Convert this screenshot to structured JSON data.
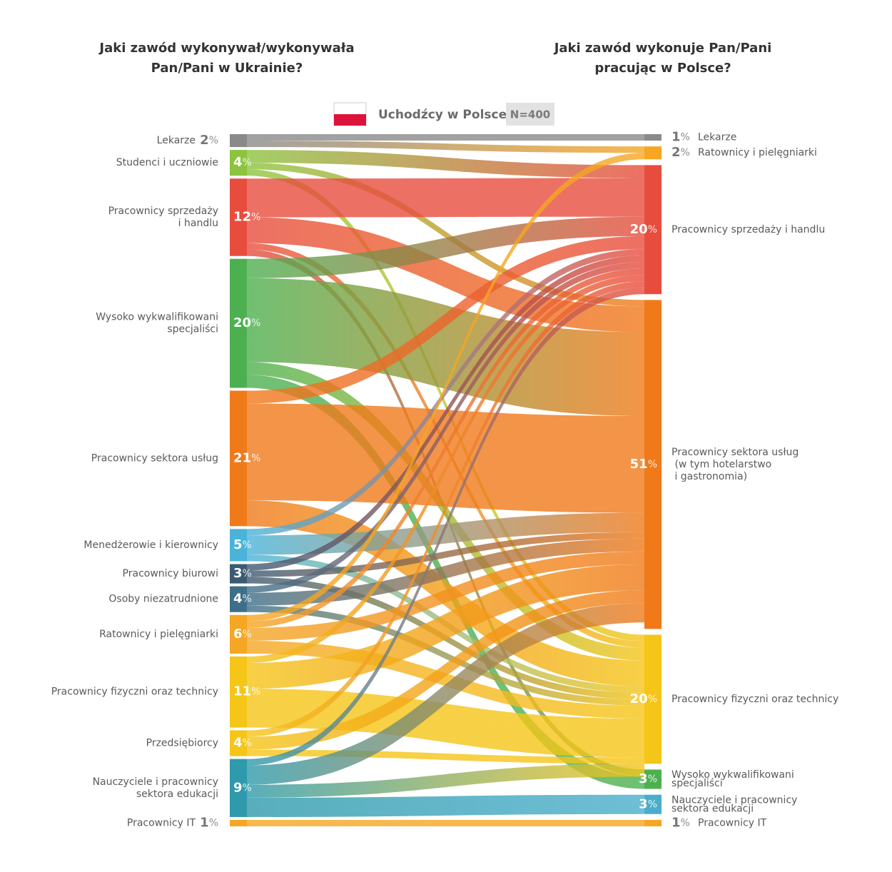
{
  "chart_data": {
    "type": "sankey",
    "left_title": [
      "Jaki zawód wykonywał/wykonywała",
      "Pan/Pani w Ukrainie?"
    ],
    "right_title": [
      "Jaki zawód wykonuje Pan/Pani",
      "pracując w Polsce?"
    ],
    "legend_label": "Uchodźcy w Polsce",
    "sample": "N=400",
    "unit": "%",
    "sources": [
      {
        "name": [
          "Lekarze"
        ],
        "value": 2,
        "color": "#8a8a8a"
      },
      {
        "name": [
          "Studenci i uczniowie"
        ],
        "value": 4,
        "color": "#8cc43f"
      },
      {
        "name": [
          "Pracownicy sprzedaży",
          "i handlu"
        ],
        "value": 12,
        "color": "#e84c3d"
      },
      {
        "name": [
          "Wysoko wykwalifikowani",
          "specjaliści"
        ],
        "value": 20,
        "color": "#4db050"
      },
      {
        "name": [
          "Pracownicy sektora usług"
        ],
        "value": 21,
        "color": "#f07a1a"
      },
      {
        "name": [
          "Menedżerowie i kierownicy"
        ],
        "value": 5,
        "color": "#4ab3d9"
      },
      {
        "name": [
          "Pracownicy biurowi"
        ],
        "value": 3,
        "color": "#3d5a73"
      },
      {
        "name": [
          "Osoby niezatrudnione"
        ],
        "value": 4,
        "color": "#3d6f8a"
      },
      {
        "name": [
          "Ratownicy i pielęgniarki"
        ],
        "value": 6,
        "color": "#f5a623"
      },
      {
        "name": [
          "Pracownicy fizyczni oraz technicy"
        ],
        "value": 11,
        "color": "#f5c518"
      },
      {
        "name": [
          "Przedsiębiorcy"
        ],
        "value": 4,
        "color": "#f5c518"
      },
      {
        "name": [
          "Nauczyciele i pracownicy",
          "sektora edukacji"
        ],
        "value": 9,
        "color": "#2e9aab"
      },
      {
        "name": [
          "Pracownicy IT"
        ],
        "value": 1,
        "color": "#f5a623"
      }
    ],
    "targets": [
      {
        "name": [
          "Lekarze"
        ],
        "value": 1,
        "color": "#8a8a8a"
      },
      {
        "name": [
          "Ratownicy i pielęgniarki"
        ],
        "value": 2,
        "color": "#f5a623"
      },
      {
        "name": [
          "Pracownicy sprzedaży i handlu"
        ],
        "value": 20,
        "color": "#e84c3d"
      },
      {
        "name": [
          "Pracownicy sektora usług",
          " (w tym hotelarstwo",
          " i gastronomia)"
        ],
        "value": 51,
        "color": "#f07a1a"
      },
      {
        "name": [
          "Pracownicy fizyczni oraz technicy"
        ],
        "value": 20,
        "color": "#f5c518"
      },
      {
        "name": [
          "Wysoko wykwalifikowani",
          "specjaliści"
        ],
        "value": 3,
        "color": "#4db050"
      },
      {
        "name": [
          "Nauczyciele i pracownicy",
          "sektora edukacji"
        ],
        "value": 3,
        "color": "#4aaecb"
      },
      {
        "name": [
          "Pracownicy IT"
        ],
        "value": 1,
        "color": "#f5a623"
      }
    ],
    "flows": [
      {
        "source": 0,
        "target": 0,
        "value": 1
      },
      {
        "source": 0,
        "target": 1,
        "value": 1
      },
      {
        "source": 1,
        "target": 2,
        "value": 2
      },
      {
        "source": 1,
        "target": 3,
        "value": 1
      },
      {
        "source": 1,
        "target": 4,
        "value": 1
      },
      {
        "source": 2,
        "target": 2,
        "value": 6
      },
      {
        "source": 2,
        "target": 3,
        "value": 4
      },
      {
        "source": 2,
        "target": 4,
        "value": 1
      },
      {
        "source": 2,
        "target": 5,
        "value": 1
      },
      {
        "source": 3,
        "target": 2,
        "value": 3
      },
      {
        "source": 3,
        "target": 3,
        "value": 13
      },
      {
        "source": 3,
        "target": 4,
        "value": 2
      },
      {
        "source": 3,
        "target": 5,
        "value": 2
      },
      {
        "source": 4,
        "target": 2,
        "value": 2
      },
      {
        "source": 4,
        "target": 3,
        "value": 15
      },
      {
        "source": 4,
        "target": 4,
        "value": 4
      },
      {
        "source": 5,
        "target": 2,
        "value": 1
      },
      {
        "source": 5,
        "target": 3,
        "value": 3
      },
      {
        "source": 5,
        "target": 4,
        "value": 1
      },
      {
        "source": 6,
        "target": 2,
        "value": 1
      },
      {
        "source": 6,
        "target": 3,
        "value": 1
      },
      {
        "source": 6,
        "target": 4,
        "value": 1
      },
      {
        "source": 7,
        "target": 2,
        "value": 1
      },
      {
        "source": 7,
        "target": 3,
        "value": 2
      },
      {
        "source": 7,
        "target": 4,
        "value": 1
      },
      {
        "source": 8,
        "target": 1,
        "value": 1
      },
      {
        "source": 8,
        "target": 2,
        "value": 1
      },
      {
        "source": 8,
        "target": 3,
        "value": 2
      },
      {
        "source": 8,
        "target": 4,
        "value": 2
      },
      {
        "source": 9,
        "target": 2,
        "value": 1
      },
      {
        "source": 9,
        "target": 3,
        "value": 4
      },
      {
        "source": 9,
        "target": 4,
        "value": 6
      },
      {
        "source": 10,
        "target": 2,
        "value": 1
      },
      {
        "source": 10,
        "target": 3,
        "value": 2
      },
      {
        "source": 10,
        "target": 4,
        "value": 1
      },
      {
        "source": 11,
        "target": 2,
        "value": 1
      },
      {
        "source": 11,
        "target": 3,
        "value": 3
      },
      {
        "source": 11,
        "target": 4,
        "value": 2
      },
      {
        "source": 11,
        "target": 6,
        "value": 3
      },
      {
        "source": 12,
        "target": 7,
        "value": 1
      }
    ]
  }
}
